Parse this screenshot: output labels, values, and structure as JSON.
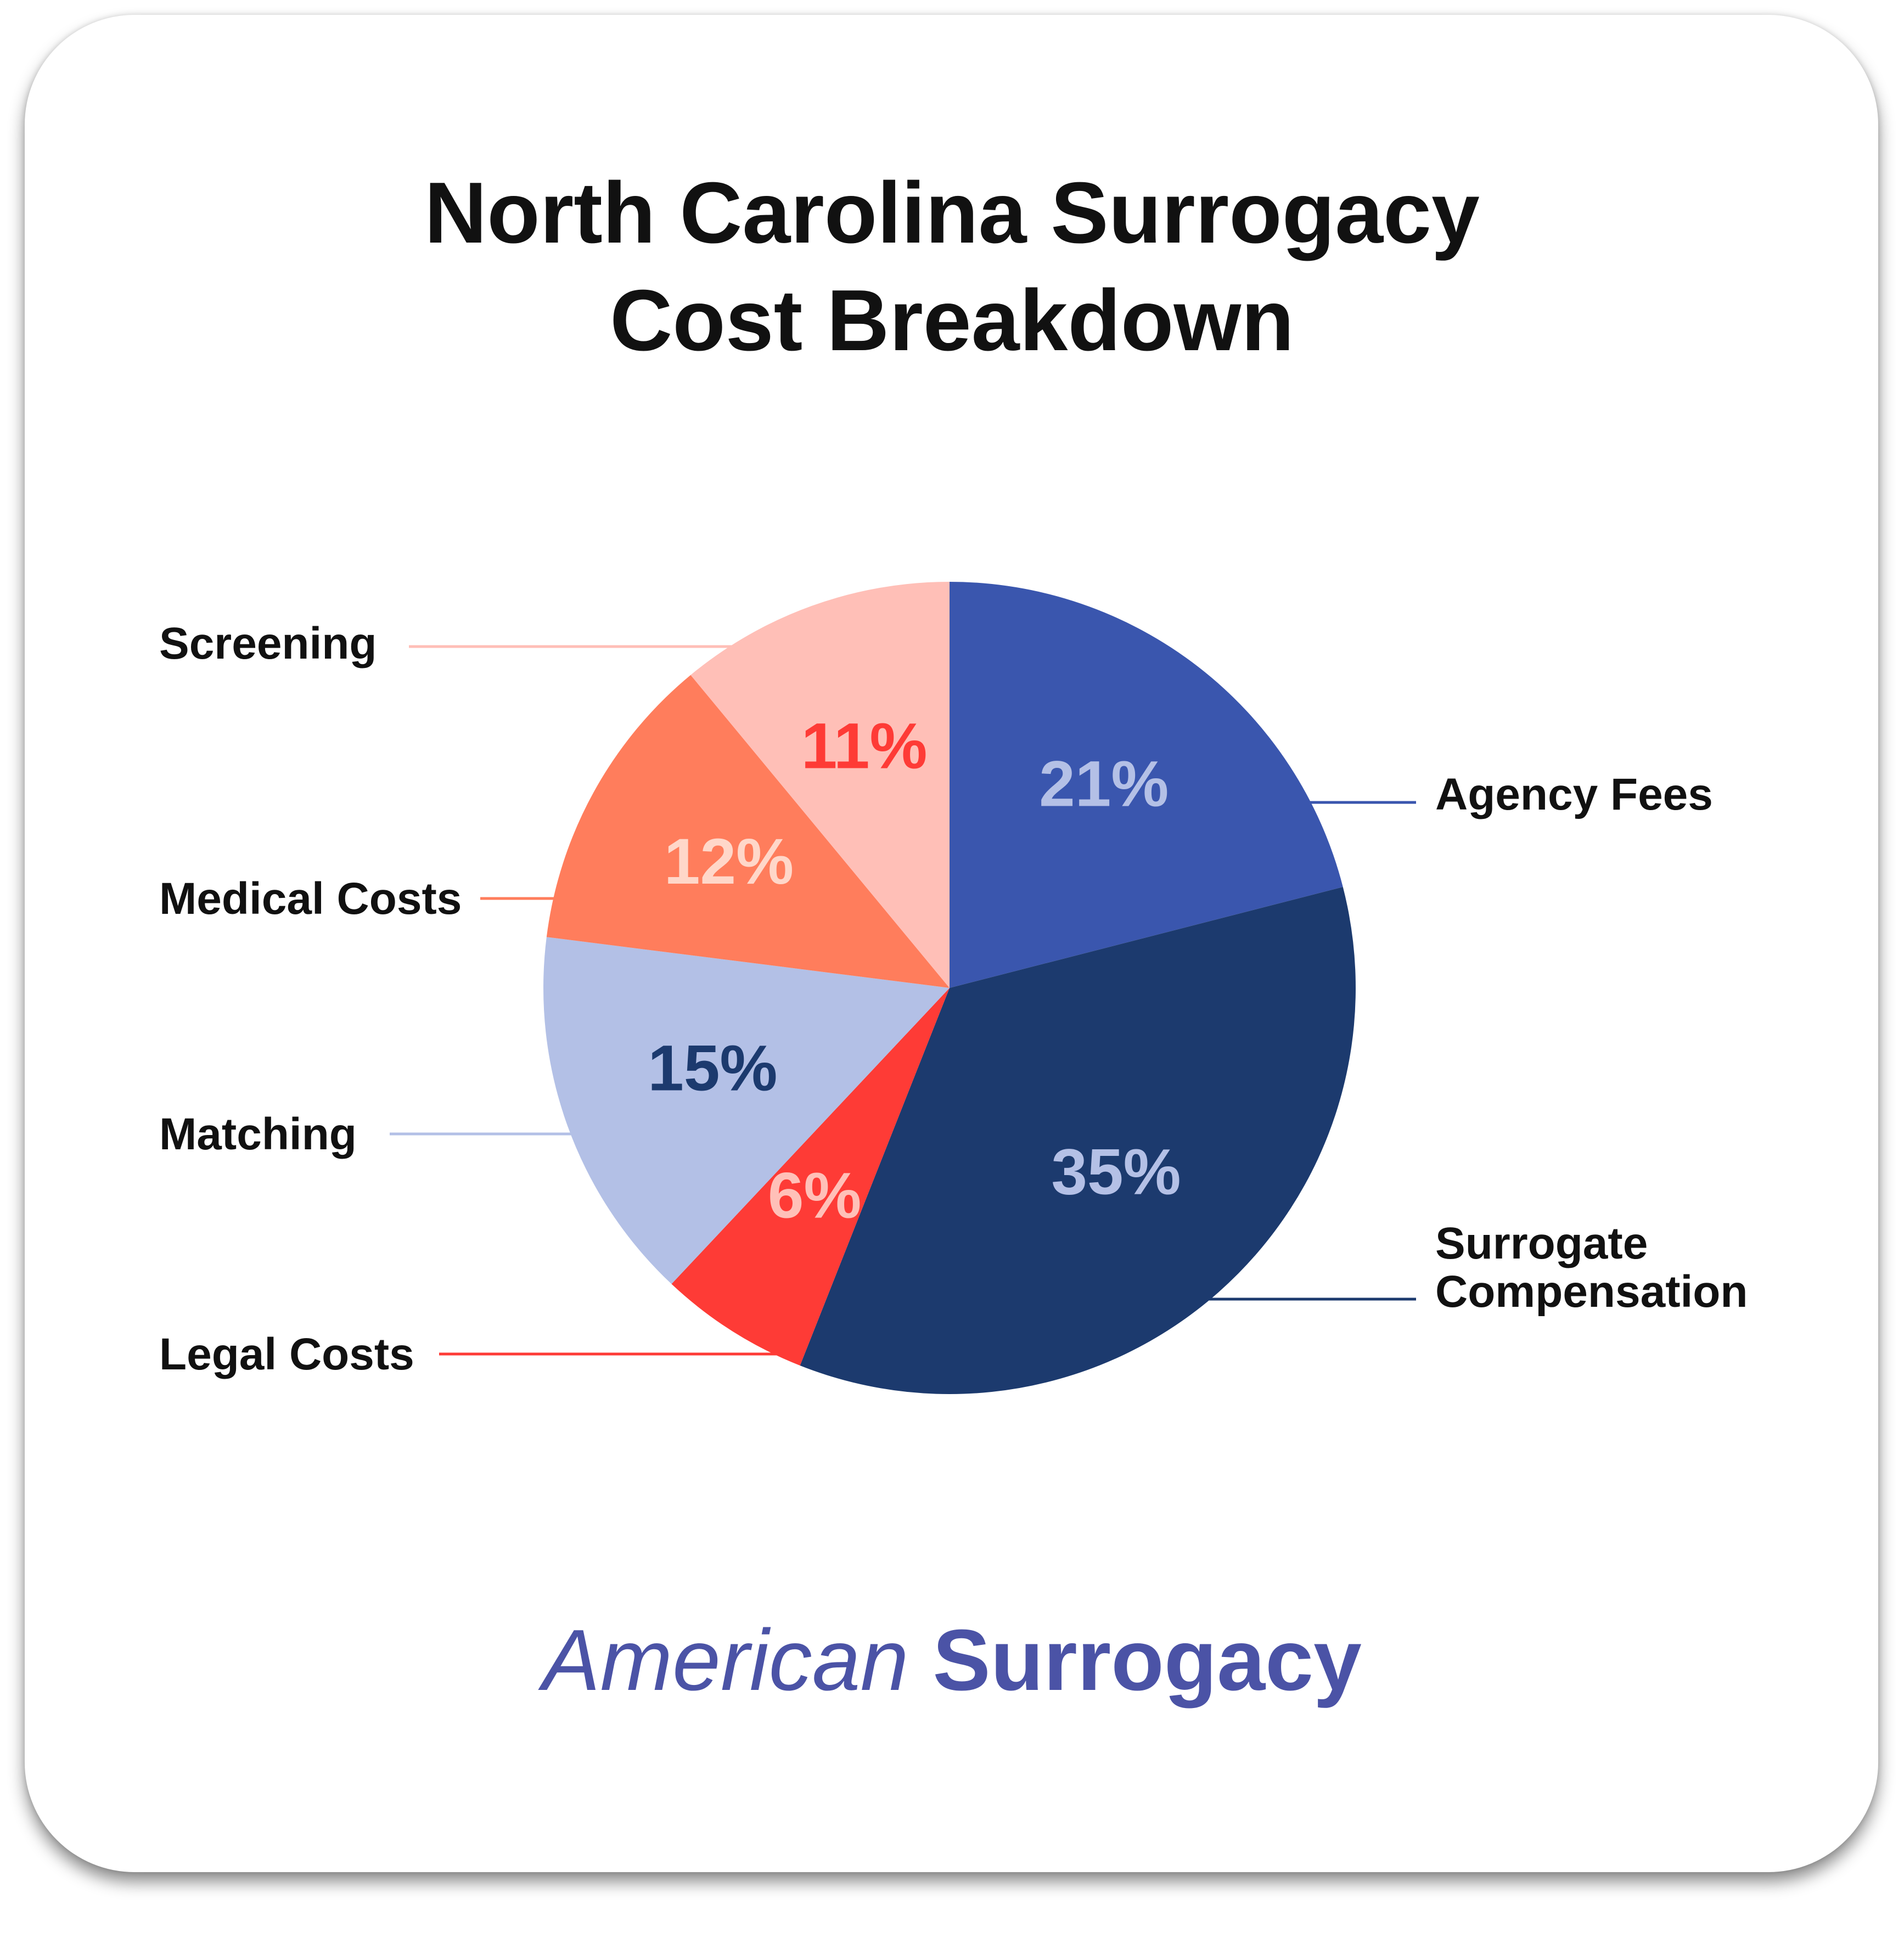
{
  "chart_data": {
    "type": "pie",
    "title": "North Carolina Surrogacy Cost Breakdown",
    "title_lines": [
      "North Carolina Surrogacy",
      "Cost Breakdown"
    ],
    "slices": [
      {
        "label": "Agency Fees",
        "label_lines": [
          "Agency Fees"
        ],
        "value": 21,
        "display": "21%",
        "color": "#3a56ae",
        "text_color": "#b4c0e6"
      },
      {
        "label": "Surrogate Compensation",
        "label_lines": [
          "Surrogate",
          "Compensation"
        ],
        "value": 35,
        "display": "35%",
        "color": "#1c3a6e",
        "text_color": "#b4c0e6"
      },
      {
        "label": "Legal Costs",
        "label_lines": [
          "Legal Costs"
        ],
        "value": 6,
        "display": "6%",
        "color": "#fe3b36",
        "text_color": "#ffc0b8"
      },
      {
        "label": "Matching",
        "label_lines": [
          "Matching"
        ],
        "value": 15,
        "display": "15%",
        "color": "#b3c0e6",
        "text_color": "#1c3a6e"
      },
      {
        "label": "Medical Costs",
        "label_lines": [
          "Medical Costs"
        ],
        "value": 12,
        "display": "12%",
        "color": "#ff7d5c",
        "text_color": "#ffd7c9"
      },
      {
        "label": "Screening",
        "label_lines": [
          "Screening"
        ],
        "value": 11,
        "display": "11%",
        "color": "#ffbfb7",
        "text_color": "#fe3b36"
      }
    ],
    "legend": "callout labels with leader lines"
  },
  "brand": {
    "light": "American",
    "bold": "Surrogacy",
    "color": "#4b53a6"
  }
}
